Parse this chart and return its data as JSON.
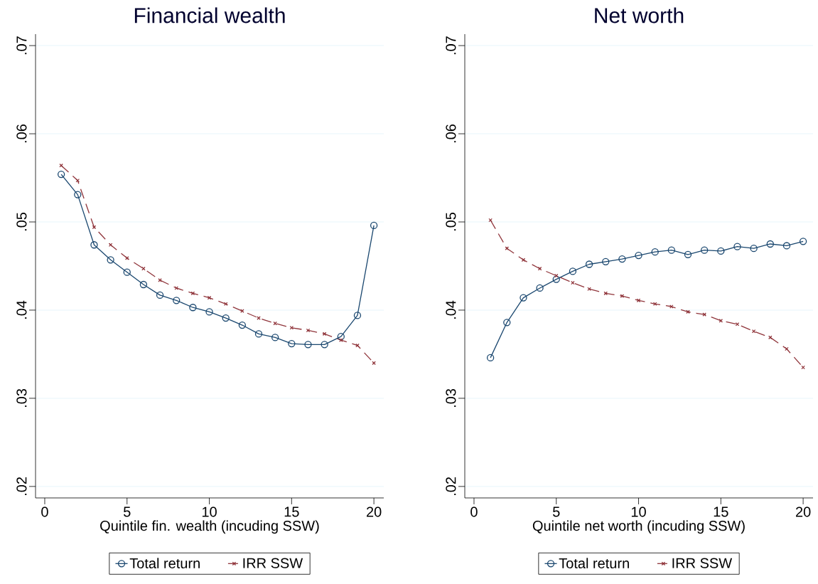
{
  "chart_data": [
    {
      "type": "line",
      "title": "Financial wealth",
      "xlabel": "Quintile fin. wealth (incuding SSW)",
      "x": [
        1,
        2,
        3,
        4,
        5,
        6,
        7,
        8,
        9,
        10,
        11,
        12,
        13,
        14,
        15,
        16,
        17,
        18,
        19,
        20
      ],
      "xlim": [
        -0.56,
        20.6
      ],
      "xticks": [
        0,
        5,
        10,
        15,
        20
      ],
      "ylim": [
        0.0187,
        0.0713
      ],
      "yticks": [
        {
          "value": 0.02,
          "label": ".02"
        },
        {
          "value": 0.03,
          "label": ".03"
        },
        {
          "value": 0.04,
          "label": ".04"
        },
        {
          "value": 0.05,
          "label": ".05"
        },
        {
          "value": 0.06,
          "label": ".06"
        },
        {
          "value": 0.07,
          "label": ".07"
        }
      ],
      "grid": "y",
      "legend": "bottom",
      "series": [
        {
          "name": "Total return",
          "color": "#1a476f",
          "marker": "circle",
          "line_style": "solid",
          "values": [
            0.0554,
            0.0531,
            0.0474,
            0.0457,
            0.0443,
            0.0429,
            0.0417,
            0.0411,
            0.0403,
            0.0398,
            0.0391,
            0.0383,
            0.0373,
            0.0369,
            0.0362,
            0.0361,
            0.0361,
            0.037,
            0.0394,
            0.0496
          ]
        },
        {
          "name": "IRR SSW",
          "color": "#90353b",
          "marker": "cross",
          "line_style": "dashed",
          "values": [
            0.0564,
            0.0547,
            0.0494,
            0.0474,
            0.0459,
            0.0447,
            0.0434,
            0.0425,
            0.0419,
            0.0414,
            0.0407,
            0.0399,
            0.0391,
            0.0385,
            0.038,
            0.0377,
            0.0373,
            0.0366,
            0.036,
            0.034
          ]
        }
      ]
    },
    {
      "type": "line",
      "title": "Net worth",
      "xlabel": "Quintile net worth (incuding SSW)",
      "x": [
        1,
        2,
        3,
        4,
        5,
        6,
        7,
        8,
        9,
        10,
        11,
        12,
        13,
        14,
        15,
        16,
        17,
        18,
        19,
        20
      ],
      "xlim": [
        -0.56,
        20.6
      ],
      "xticks": [
        0,
        5,
        10,
        15,
        20
      ],
      "ylim": [
        0.0187,
        0.0713
      ],
      "yticks": [
        {
          "value": 0.02,
          "label": ".02"
        },
        {
          "value": 0.03,
          "label": ".03"
        },
        {
          "value": 0.04,
          "label": ".04"
        },
        {
          "value": 0.05,
          "label": ".05"
        },
        {
          "value": 0.06,
          "label": ".06"
        },
        {
          "value": 0.07,
          "label": ".07"
        }
      ],
      "grid": "y",
      "legend": "bottom",
      "series": [
        {
          "name": "Total return",
          "color": "#1a476f",
          "marker": "circle",
          "line_style": "solid",
          "values": [
            0.0346,
            0.0386,
            0.0414,
            0.0425,
            0.0435,
            0.0444,
            0.0452,
            0.0455,
            0.0458,
            0.0462,
            0.0466,
            0.0468,
            0.0463,
            0.0468,
            0.0467,
            0.0472,
            0.047,
            0.0475,
            0.0473,
            0.0478
          ]
        },
        {
          "name": "IRR SSW",
          "color": "#90353b",
          "marker": "cross",
          "line_style": "dashed",
          "values": [
            0.0502,
            0.047,
            0.0457,
            0.0447,
            0.0439,
            0.0431,
            0.0424,
            0.0419,
            0.0416,
            0.0411,
            0.0407,
            0.0404,
            0.0398,
            0.0395,
            0.0388,
            0.0384,
            0.0376,
            0.0369,
            0.0356,
            0.0335
          ]
        }
      ]
    }
  ]
}
